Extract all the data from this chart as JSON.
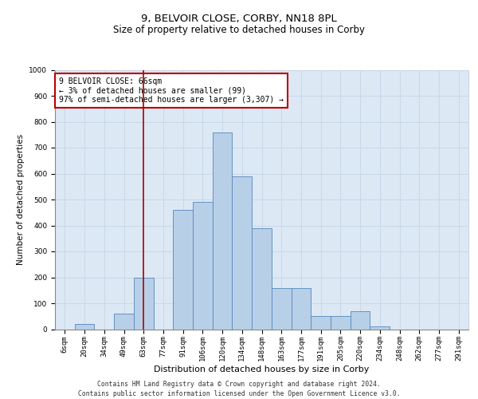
{
  "title1": "9, BELVOIR CLOSE, CORBY, NN18 8PL",
  "title2": "Size of property relative to detached houses in Corby",
  "xlabel": "Distribution of detached houses by size in Corby",
  "ylabel": "Number of detached properties",
  "categories": [
    "6sqm",
    "20sqm",
    "34sqm",
    "49sqm",
    "63sqm",
    "77sqm",
    "91sqm",
    "106sqm",
    "120sqm",
    "134sqm",
    "148sqm",
    "163sqm",
    "177sqm",
    "191sqm",
    "205sqm",
    "220sqm",
    "234sqm",
    "248sqm",
    "262sqm",
    "277sqm",
    "291sqm"
  ],
  "values": [
    0,
    20,
    0,
    60,
    200,
    0,
    460,
    490,
    760,
    590,
    390,
    160,
    160,
    50,
    50,
    70,
    10,
    0,
    0,
    0,
    0
  ],
  "bar_color": "#b8cfe8",
  "bar_edge_color": "#5588bb",
  "vline_x_index": 4,
  "vline_color": "#aa0000",
  "annotation_text": "9 BELVOIR CLOSE: 66sqm\n← 3% of detached houses are smaller (99)\n97% of semi-detached houses are larger (3,307) →",
  "annotation_box_edgecolor": "#bb0000",
  "ylim": [
    0,
    1000
  ],
  "yticks": [
    0,
    100,
    200,
    300,
    400,
    500,
    600,
    700,
    800,
    900,
    1000
  ],
  "grid_color": "#c8d8e8",
  "background_color": "#dce8f4",
  "footer": "Contains HM Land Registry data © Crown copyright and database right 2024.\nContains public sector information licensed under the Open Government Licence v3.0.",
  "title1_fontsize": 9.5,
  "title2_fontsize": 8.5,
  "xlabel_fontsize": 8,
  "ylabel_fontsize": 7.5,
  "tick_fontsize": 6.5,
  "annotation_fontsize": 7,
  "footer_fontsize": 5.8
}
